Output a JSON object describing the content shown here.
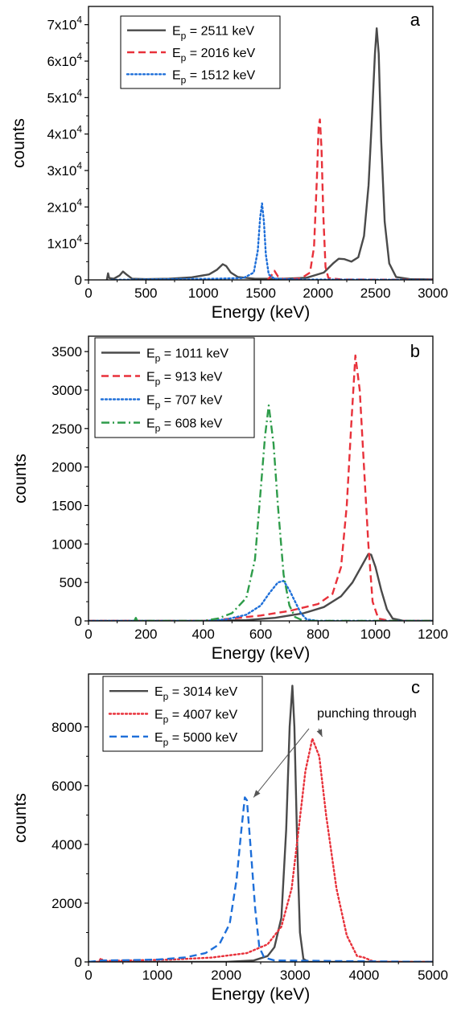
{
  "chart_data": [
    {
      "type": "line",
      "panel_letter": "a",
      "xlabel": "Energy (keV)",
      "ylabel": "counts",
      "xlim": [
        0,
        3000
      ],
      "ylim": [
        0,
        75000
      ],
      "xticks": [
        0,
        500,
        1000,
        1500,
        2000,
        2500,
        3000
      ],
      "xtick_labels": [
        "0",
        "500",
        "1000",
        "1500",
        "2000",
        "2500",
        "3000"
      ],
      "yticks": [
        0,
        10000,
        20000,
        30000,
        40000,
        50000,
        60000,
        70000
      ],
      "ytick_labels": [
        "0",
        "1x10^4",
        "2x10^4",
        "3x10^4",
        "4x10^4",
        "5x10^4",
        "6x10^4",
        "7x10^4"
      ],
      "grid": false,
      "legend_position": "top-left",
      "series": [
        {
          "name": "E_p = 2511 keV",
          "label_pre": "E",
          "label_sub": "p",
          "label_post": " = 2511 keV",
          "color": "#4a4a4a",
          "dash": "solid",
          "points": [
            [
              160,
              0
            ],
            [
              170,
              1800
            ],
            [
              180,
              500
            ],
            [
              220,
              300
            ],
            [
              270,
              1200
            ],
            [
              300,
              2300
            ],
            [
              330,
              1500
            ],
            [
              380,
              300
            ],
            [
              500,
              200
            ],
            [
              700,
              300
            ],
            [
              900,
              700
            ],
            [
              1050,
              1500
            ],
            [
              1120,
              2800
            ],
            [
              1170,
              4300
            ],
            [
              1200,
              3800
            ],
            [
              1240,
              2000
            ],
            [
              1300,
              800
            ],
            [
              1450,
              300
            ],
            [
              1700,
              300
            ],
            [
              1900,
              600
            ],
            [
              2050,
              2000
            ],
            [
              2130,
              4500
            ],
            [
              2180,
              5800
            ],
            [
              2230,
              5700
            ],
            [
              2290,
              5000
            ],
            [
              2350,
              6200
            ],
            [
              2400,
              12000
            ],
            [
              2440,
              26000
            ],
            [
              2470,
              45000
            ],
            [
              2495,
              62000
            ],
            [
              2511,
              69000
            ],
            [
              2528,
              62000
            ],
            [
              2550,
              38000
            ],
            [
              2580,
              16000
            ],
            [
              2620,
              4500
            ],
            [
              2680,
              800
            ],
            [
              2800,
              200
            ],
            [
              3000,
              100
            ]
          ]
        },
        {
          "name": "E_p = 2016 keV",
          "label_pre": "E",
          "label_sub": "p",
          "label_post": " = 2016 keV",
          "color": "#e8313a",
          "dash": "dashed",
          "points": [
            [
              1560,
              0
            ],
            [
              1600,
              1500
            ],
            [
              1620,
              2500
            ],
            [
              1650,
              1000
            ],
            [
              1700,
              200
            ],
            [
              1850,
              400
            ],
            [
              1930,
              2000
            ],
            [
              1965,
              9000
            ],
            [
              1990,
              28000
            ],
            [
              2005,
              42000
            ],
            [
              2016,
              44000
            ],
            [
              2030,
              36000
            ],
            [
              2045,
              18000
            ],
            [
              2065,
              3500
            ],
            [
              2090,
              500
            ],
            [
              2200,
              100
            ],
            [
              3000,
              0
            ]
          ]
        },
        {
          "name": "E_p = 1512 keV",
          "label_pre": "E",
          "label_sub": "p",
          "label_post": " = 1512 keV",
          "color": "#1e6fd9",
          "dash": "dotted",
          "points": [
            [
              200,
              0
            ],
            [
              700,
              200
            ],
            [
              1100,
              300
            ],
            [
              1350,
              500
            ],
            [
              1440,
              2000
            ],
            [
              1475,
              8000
            ],
            [
              1495,
              17000
            ],
            [
              1512,
              21000
            ],
            [
              1528,
              16000
            ],
            [
              1545,
              7000
            ],
            [
              1570,
              1500
            ],
            [
              1620,
              300
            ],
            [
              1800,
              100
            ],
            [
              3000,
              0
            ]
          ]
        }
      ]
    },
    {
      "type": "line",
      "panel_letter": "b",
      "xlabel": "Energy (keV)",
      "ylabel": "counts",
      "xlim": [
        0,
        1200
      ],
      "ylim": [
        0,
        3700
      ],
      "xticks": [
        0,
        200,
        400,
        600,
        800,
        1000,
        1200
      ],
      "xtick_labels": [
        "0",
        "200",
        "400",
        "600",
        "800",
        "1000",
        "1200"
      ],
      "yticks": [
        0,
        500,
        1000,
        1500,
        2000,
        2500,
        3000,
        3500
      ],
      "ytick_labels": [
        "0",
        "500",
        "1000",
        "1500",
        "2000",
        "2500",
        "3000",
        "3500"
      ],
      "grid": false,
      "legend_position": "top-left",
      "series": [
        {
          "name": "E_p = 1011 keV",
          "label_pre": "E",
          "label_sub": "p",
          "label_post": " = 1011 keV",
          "color": "#4a4a4a",
          "dash": "solid",
          "points": [
            [
              0,
              0
            ],
            [
              400,
              0
            ],
            [
              550,
              10
            ],
            [
              650,
              40
            ],
            [
              750,
              100
            ],
            [
              820,
              180
            ],
            [
              880,
              320
            ],
            [
              920,
              500
            ],
            [
              950,
              700
            ],
            [
              975,
              870
            ],
            [
              985,
              860
            ],
            [
              1000,
              700
            ],
            [
              1020,
              400
            ],
            [
              1040,
              150
            ],
            [
              1060,
              30
            ],
            [
              1100,
              0
            ],
            [
              1200,
              0
            ]
          ]
        },
        {
          "name": "E_p = 913 keV",
          "label_pre": "E",
          "label_sub": "p",
          "label_post": " = 913 keV",
          "color": "#e8313a",
          "dash": "dashed",
          "points": [
            [
              0,
              0
            ],
            [
              400,
              0
            ],
            [
              500,
              30
            ],
            [
              600,
              70
            ],
            [
              700,
              130
            ],
            [
              800,
              220
            ],
            [
              850,
              350
            ],
            [
              880,
              700
            ],
            [
              900,
              1500
            ],
            [
              915,
              2500
            ],
            [
              930,
              3450
            ],
            [
              945,
              3000
            ],
            [
              960,
              2000
            ],
            [
              975,
              1000
            ],
            [
              990,
              250
            ],
            [
              1010,
              30
            ],
            [
              1050,
              0
            ],
            [
              1200,
              0
            ]
          ]
        },
        {
          "name": "E_p = 707 keV",
          "label_pre": "E",
          "label_sub": "p",
          "label_post": " = 707 keV",
          "color": "#1e6fd9",
          "dash": "dotted",
          "points": [
            [
              0,
              0
            ],
            [
              400,
              0
            ],
            [
              480,
              20
            ],
            [
              550,
              80
            ],
            [
              600,
              200
            ],
            [
              630,
              360
            ],
            [
              660,
              500
            ],
            [
              680,
              520
            ],
            [
              700,
              400
            ],
            [
              720,
              250
            ],
            [
              740,
              100
            ],
            [
              760,
              20
            ],
            [
              800,
              0
            ],
            [
              1200,
              0
            ]
          ]
        },
        {
          "name": "E_p = 608 keV",
          "label_pre": "E",
          "label_sub": "p",
          "label_post": " = 608 keV",
          "color": "#2e9c4a",
          "dash": "dashdot",
          "points": [
            [
              160,
              0
            ],
            [
              165,
              40
            ],
            [
              170,
              0
            ],
            [
              400,
              0
            ],
            [
              450,
              30
            ],
            [
              500,
              100
            ],
            [
              550,
              300
            ],
            [
              580,
              800
            ],
            [
              600,
              1700
            ],
            [
              615,
              2400
            ],
            [
              628,
              2800
            ],
            [
              645,
              2300
            ],
            [
              660,
              1500
            ],
            [
              680,
              600
            ],
            [
              700,
              200
            ],
            [
              720,
              50
            ],
            [
              750,
              0
            ],
            [
              1200,
              0
            ]
          ]
        }
      ]
    },
    {
      "type": "line",
      "panel_letter": "c",
      "xlabel": "Energy (keV)",
      "ylabel": "counts",
      "xlim": [
        0,
        5000
      ],
      "ylim": [
        0,
        9800
      ],
      "xticks": [
        0,
        1000,
        2000,
        3000,
        4000,
        5000
      ],
      "xtick_labels": [
        "0",
        "1000",
        "2000",
        "3000",
        "4000",
        "5000"
      ],
      "yticks": [
        0,
        2000,
        4000,
        6000,
        8000
      ],
      "ytick_labels": [
        "0",
        "2000",
        "4000",
        "6000",
        "8000"
      ],
      "grid": false,
      "legend_position": "top-left",
      "annotation": {
        "text": "punching through",
        "arrow_targets": [
          [
            2280,
            5600
          ],
          [
            3300,
            7500
          ]
        ]
      },
      "series": [
        {
          "name": "E_p = 3014 keV",
          "label_pre": "E",
          "label_sub": "p",
          "label_post": " = 3014 keV",
          "color": "#4a4a4a",
          "dash": "solid",
          "points": [
            [
              0,
              0
            ],
            [
              2000,
              0
            ],
            [
              2400,
              50
            ],
            [
              2600,
              200
            ],
            [
              2700,
              500
            ],
            [
              2800,
              1500
            ],
            [
              2870,
              4500
            ],
            [
              2920,
              8000
            ],
            [
              2960,
              9400
            ],
            [
              2990,
              8000
            ],
            [
              3030,
              4000
            ],
            [
              3070,
              1000
            ],
            [
              3120,
              100
            ],
            [
              3200,
              0
            ],
            [
              5000,
              0
            ]
          ]
        },
        {
          "name": "E_p = 4007 keV",
          "label_pre": "E",
          "label_sub": "p",
          "label_post": " = 4007 keV",
          "color": "#e8313a",
          "dash": "dotted",
          "points": [
            [
              0,
              0
            ],
            [
              150,
              0
            ],
            [
              180,
              120
            ],
            [
              220,
              30
            ],
            [
              600,
              50
            ],
            [
              1200,
              80
            ],
            [
              1800,
              150
            ],
            [
              2300,
              300
            ],
            [
              2600,
              600
            ],
            [
              2800,
              1200
            ],
            [
              2950,
              2500
            ],
            [
              3050,
              4500
            ],
            [
              3150,
              6500
            ],
            [
              3250,
              7600
            ],
            [
              3350,
              7000
            ],
            [
              3450,
              5000
            ],
            [
              3600,
              2500
            ],
            [
              3750,
              900
            ],
            [
              3900,
              200
            ],
            [
              4000,
              150
            ],
            [
              4050,
              100
            ],
            [
              4150,
              0
            ],
            [
              5000,
              0
            ]
          ]
        },
        {
          "name": "E_p = 5000 keV",
          "label_pre": "E",
          "label_sub": "p",
          "label_post": " = 5000 keV",
          "color": "#1e6fd9",
          "dash": "dashed",
          "points": [
            [
              0,
              0
            ],
            [
              200,
              50
            ],
            [
              600,
              60
            ],
            [
              1000,
              80
            ],
            [
              1400,
              150
            ],
            [
              1700,
              300
            ],
            [
              1900,
              600
            ],
            [
              2050,
              1300
            ],
            [
              2150,
              2800
            ],
            [
              2220,
              4500
            ],
            [
              2270,
              5600
            ],
            [
              2300,
              5500
            ],
            [
              2350,
              4000
            ],
            [
              2420,
              1800
            ],
            [
              2480,
              500
            ],
            [
              2550,
              150
            ],
            [
              2700,
              50
            ],
            [
              5000,
              0
            ]
          ]
        }
      ]
    }
  ]
}
